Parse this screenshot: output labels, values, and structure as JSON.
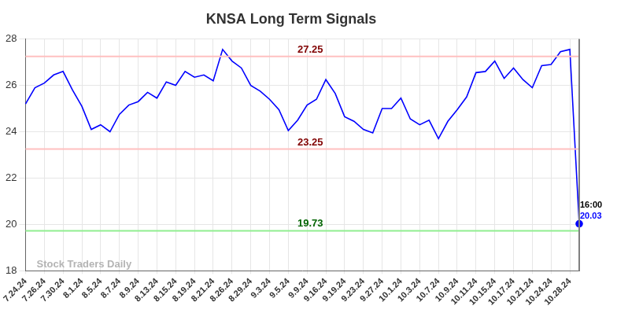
{
  "chart_data": {
    "type": "line",
    "title": "KNSA Long Term Signals",
    "categories": [
      "7.24.24",
      null,
      "7.26.24",
      null,
      "7.30.24",
      null,
      "8.1.24",
      null,
      "8.5.24",
      null,
      "8.7.24",
      null,
      "8.9.24",
      null,
      "8.13.24",
      null,
      "8.15.24",
      null,
      "8.19.24",
      null,
      "8.21.24",
      null,
      "8.26.24",
      null,
      "8.29.24",
      null,
      "9.3.24",
      null,
      "9.5.24",
      null,
      "9.9.24",
      null,
      "9.16.24",
      null,
      "9.19.24",
      null,
      "9.23.24",
      null,
      "9.27.24",
      null,
      "10.1.24",
      null,
      "10.3.24",
      null,
      "10.7.24",
      null,
      "10.9.24",
      null,
      "10.11.24",
      null,
      "10.15.24",
      null,
      "10.17.24",
      null,
      "10.21.24",
      null,
      "10.24.24",
      null,
      "10.28.24",
      null
    ],
    "values": [
      25.2,
      25.9,
      26.1,
      26.45,
      26.6,
      25.8,
      25.1,
      24.1,
      24.3,
      24.0,
      24.75,
      25.15,
      25.3,
      25.7,
      25.45,
      26.15,
      26.0,
      26.6,
      26.35,
      26.45,
      26.2,
      27.55,
      27.05,
      26.75,
      26.0,
      25.75,
      25.4,
      24.95,
      24.05,
      24.5,
      25.15,
      25.4,
      26.25,
      25.65,
      24.65,
      24.45,
      24.1,
      23.95,
      25.0,
      25.0,
      25.45,
      24.55,
      24.3,
      24.5,
      23.7,
      24.45,
      24.95,
      25.5,
      26.55,
      26.6,
      27.05,
      26.3,
      26.75,
      26.25,
      25.9,
      26.85,
      26.9,
      27.45,
      27.55,
      20.03
    ],
    "color": "#0000ff",
    "ylim": [
      18,
      28
    ],
    "yticks": [
      18,
      20,
      22,
      24,
      26,
      28
    ],
    "grid": true,
    "levels": [
      {
        "value": 27.25,
        "color": "#ffc0c0",
        "label_color": "#800000"
      },
      {
        "value": 23.25,
        "color": "#ffc0c0",
        "label_color": "#800000"
      },
      {
        "value": 19.73,
        "color": "#90ee90",
        "label_color": "#006400"
      }
    ],
    "annotations": {
      "last_time": "16:00",
      "last_value": 20.03,
      "watermark": "Stock Traders Daily"
    }
  }
}
